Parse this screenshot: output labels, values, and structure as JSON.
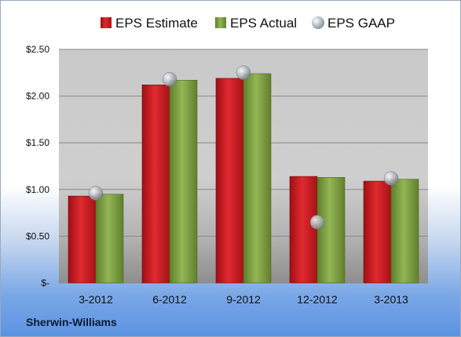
{
  "company": "Sherwin-Williams",
  "colors": {
    "estimate": "#c8161d",
    "actual": "#7da23c",
    "gaap": "#a8aeb6"
  },
  "chart_data": {
    "type": "bar",
    "categories": [
      "3-2012",
      "6-2012",
      "9-2012",
      "12-2012",
      "3-2013"
    ],
    "series": [
      {
        "name": "EPS Estimate",
        "values": [
          0.93,
          2.12,
          2.19,
          1.14,
          1.09
        ]
      },
      {
        "name": "EPS Actual",
        "values": [
          0.95,
          2.17,
          2.24,
          1.13,
          1.11
        ]
      },
      {
        "name": "EPS GAAP",
        "type": "scatter",
        "values": [
          0.96,
          2.18,
          2.25,
          0.65,
          1.12
        ]
      }
    ],
    "ylim": [
      0,
      2.5
    ],
    "yticks": [
      0,
      0.5,
      1.0,
      1.5,
      2.0,
      2.5
    ],
    "ytick_labels": [
      "$-",
      "$0.50",
      "$1.00",
      "$1.50",
      "$2.00",
      "$2.50"
    ],
    "legend_position": "top",
    "grid": true
  }
}
